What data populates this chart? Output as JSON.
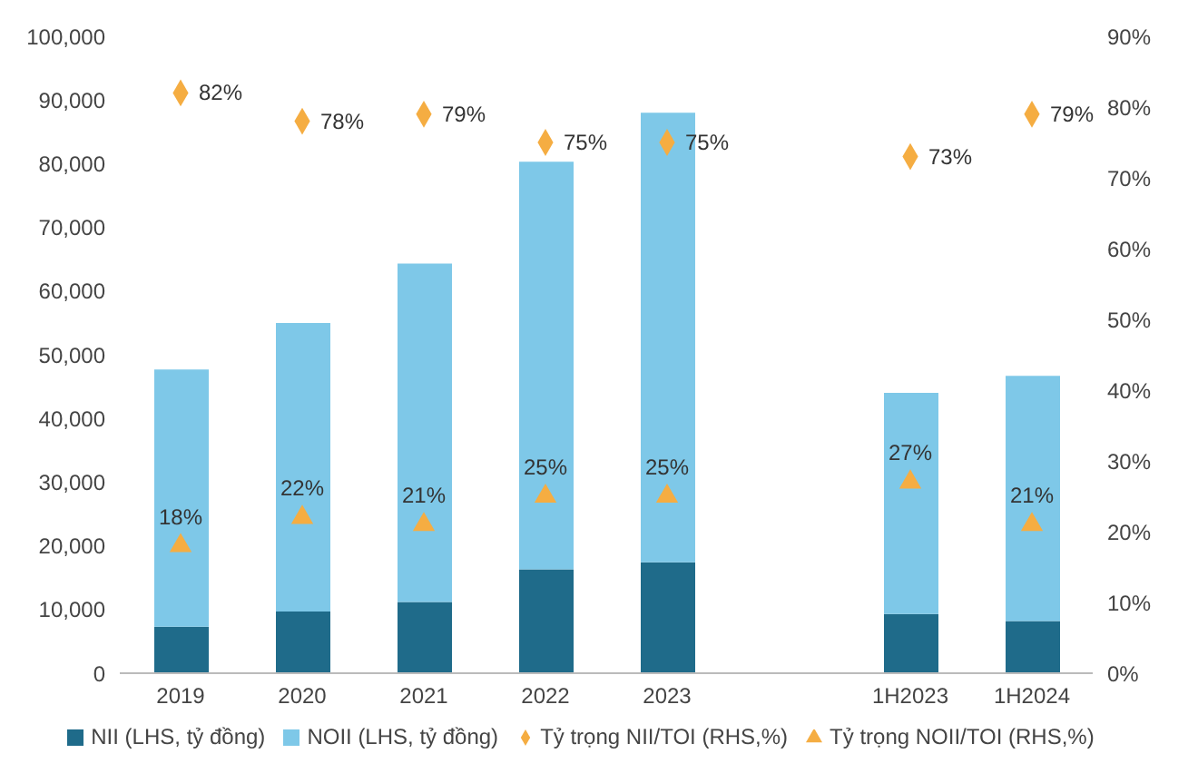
{
  "chart_data": {
    "type": "bar",
    "stacked": true,
    "categories": [
      "2019",
      "2020",
      "2021",
      "2022",
      "2023",
      null,
      "1H2023",
      "1H2024"
    ],
    "series": [
      {
        "name": "NII (LHS, tỷ đồng)",
        "color": "#1f6b8a",
        "values": [
          7300,
          9700,
          11200,
          16300,
          17400,
          null,
          9300,
          8200
        ]
      },
      {
        "name": "NOII (LHS, tỷ đồng)",
        "color": "#7ec8e8",
        "values": [
          40400,
          45300,
          53100,
          64000,
          70600,
          null,
          34700,
          38500
        ]
      },
      {
        "name": "Tỷ trọng NII/TOI (RHS,%)",
        "type": "scatter",
        "marker": "diamond",
        "axis": "y2",
        "color": "#f5ad42",
        "values": [
          82,
          78,
          79,
          75,
          75,
          null,
          73,
          79
        ],
        "value_labels": [
          "82%",
          "78%",
          "79%",
          "75%",
          "75%",
          null,
          "73%",
          "79%"
        ]
      },
      {
        "name": "Tỷ trọng NOII/TOI (RHS,%)",
        "type": "scatter",
        "marker": "triangle",
        "axis": "y2",
        "color": "#f5ad42",
        "values": [
          18,
          22,
          21,
          25,
          25,
          null,
          27,
          21
        ],
        "value_labels": [
          "18%",
          "22%",
          "21%",
          "25%",
          "25%",
          null,
          "27%",
          "21%"
        ]
      }
    ],
    "ylim": [
      0,
      100000
    ],
    "yticks": [
      {
        "value": 0,
        "label": "0"
      },
      {
        "value": 10000,
        "label": "10,000"
      },
      {
        "value": 20000,
        "label": "20,000"
      },
      {
        "value": 30000,
        "label": "30,000"
      },
      {
        "value": 40000,
        "label": "40,000"
      },
      {
        "value": 50000,
        "label": "50,000"
      },
      {
        "value": 60000,
        "label": "60,000"
      },
      {
        "value": 70000,
        "label": "70,000"
      },
      {
        "value": 80000,
        "label": "80,000"
      },
      {
        "value": 90000,
        "label": "90,000"
      },
      {
        "value": 100000,
        "label": "100,000"
      }
    ],
    "y2lim": [
      0,
      90
    ],
    "y2ticks": [
      {
        "value": 0,
        "label": "0%"
      },
      {
        "value": 10,
        "label": "10%"
      },
      {
        "value": 20,
        "label": "20%"
      },
      {
        "value": 30,
        "label": "30%"
      },
      {
        "value": 40,
        "label": "40%"
      },
      {
        "value": 50,
        "label": "50%"
      },
      {
        "value": 60,
        "label": "60%"
      },
      {
        "value": 70,
        "label": "70%"
      },
      {
        "value": 80,
        "label": "80%"
      },
      {
        "value": 90,
        "label": "90%"
      }
    ],
    "grid": false,
    "legend": "bottom"
  }
}
